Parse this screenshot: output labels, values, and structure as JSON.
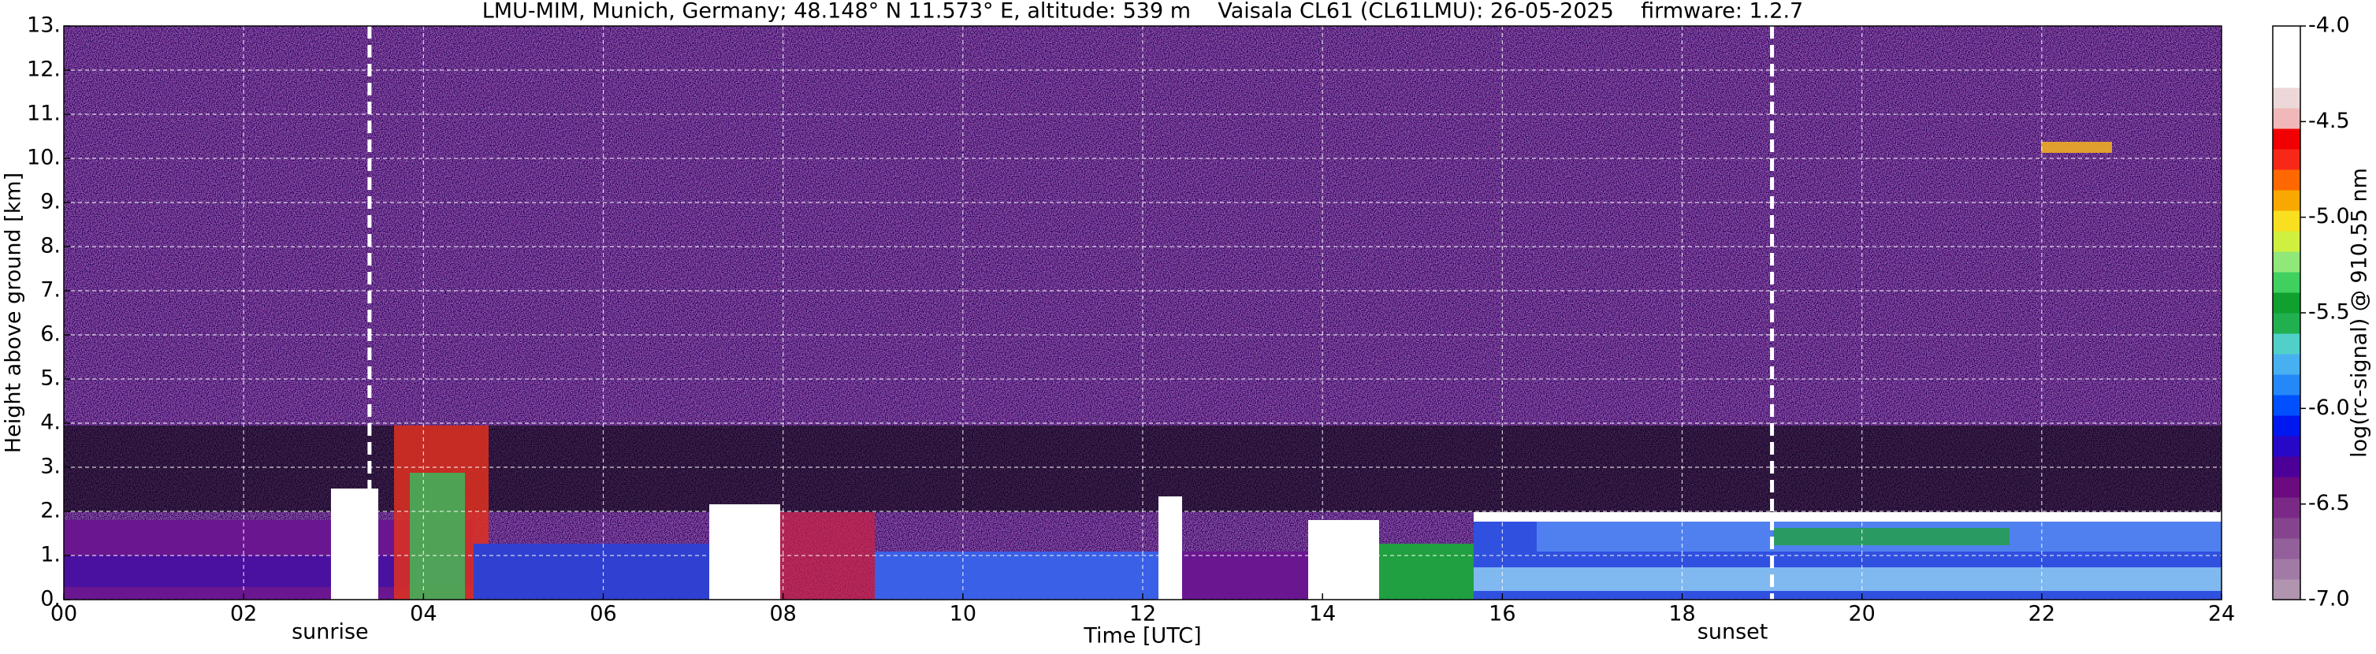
{
  "chart_data": {
    "type": "heatmap",
    "title": "LMU-MIM, Munich, Germany; 48.148° N 11.573° E, altitude: 539 m    Vaisala CL61 (CL61LMU): 26-05-2025    firmware: 1.2.7",
    "x_label": "Time [UTC]",
    "y_label": "Height above ground [km]",
    "xlim": [
      0,
      24
    ],
    "xticks": [
      {
        "value": 0,
        "label": "00"
      },
      {
        "value": 2,
        "label": "02"
      },
      {
        "value": 4,
        "label": "04"
      },
      {
        "value": 6,
        "label": "06"
      },
      {
        "value": 8,
        "label": "08"
      },
      10,
      12,
      14,
      16,
      18,
      20,
      22,
      24
    ],
    "ylim": [
      0,
      13
    ],
    "yticks": [
      {
        "value": 0,
        "label": "0."
      },
      {
        "value": 1,
        "label": "1."
      },
      {
        "value": 2,
        "label": "2."
      },
      {
        "value": 3,
        "label": "3."
      },
      {
        "value": 4,
        "label": "4."
      },
      {
        "value": 5,
        "label": "5."
      },
      {
        "value": 6,
        "label": "6."
      },
      {
        "value": 7,
        "label": "7."
      },
      {
        "value": 8,
        "label": "8."
      },
      {
        "value": 9,
        "label": "9."
      },
      {
        "value": 10,
        "label": "10."
      },
      {
        "value": 11,
        "label": "11."
      },
      {
        "value": 12,
        "label": "12."
      },
      {
        "value": 13,
        "label": "13."
      }
    ],
    "grid": true,
    "events": [
      {
        "x": 3.4,
        "label": "sunrise"
      },
      {
        "x": 19.0,
        "label": "sunset"
      }
    ],
    "colorbar": {
      "label": "log(rc-signal) @ 910.55 nm",
      "lim": [
        -7,
        -4
      ],
      "ticks": [
        {
          "value": -7,
          "label": "-7.0"
        },
        {
          "value": -6.5,
          "label": "-6.5"
        },
        {
          "value": -6,
          "label": "-6.0"
        },
        {
          "value": -5.5,
          "label": "-5.5"
        },
        {
          "value": -5,
          "label": "-5.0"
        },
        {
          "value": -4.5,
          "label": "-4.5"
        },
        {
          "value": -4,
          "label": "-4.0"
        }
      ],
      "colors": [
        "#b094b0",
        "#a27aa6",
        "#94609c",
        "#86448f",
        "#7a2a86",
        "#6c0a80",
        "#4c0098",
        "#2808c8",
        "#0018f0",
        "#0050ff",
        "#2488f8",
        "#48b0f0",
        "#50d0c8",
        "#20b050",
        "#10a030",
        "#40d060",
        "#90e878",
        "#d0f040",
        "#f8e020",
        "#f8a800",
        "#ff6800",
        "#f82818",
        "#f00000",
        "#f0b8b8",
        "#ecd8d8",
        "#ffffff",
        "#ffffff",
        "#ffffff"
      ]
    }
  }
}
